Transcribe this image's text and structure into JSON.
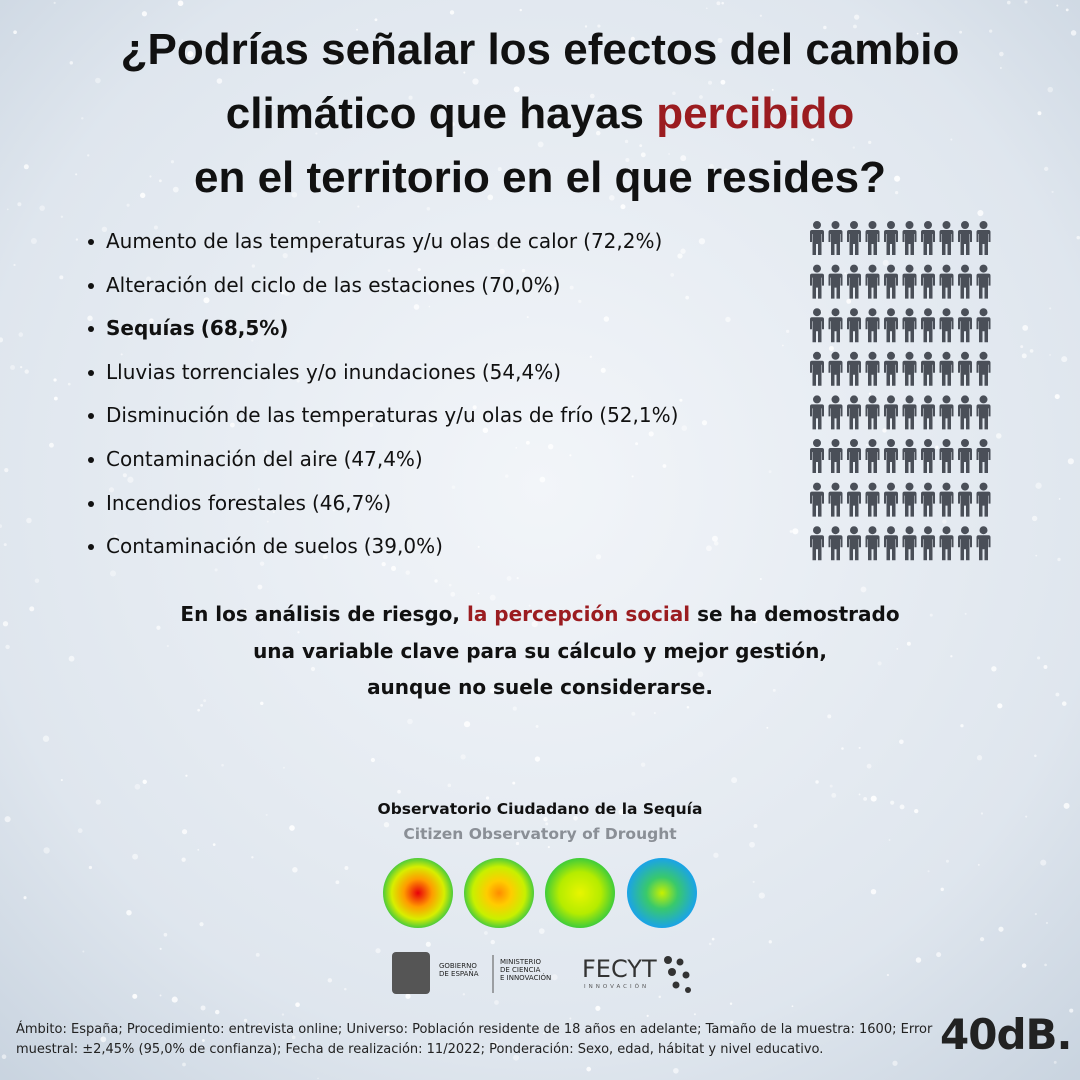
{
  "title": [
    [
      {
        "text": "¿Podrías señalar los efectos del cambio"
      }
    ],
    [
      {
        "text": "climático que hayas "
      },
      {
        "text": "percibido",
        "color": "#9b1c20"
      }
    ],
    [
      {
        "text": "en el territorio en el que resides?"
      }
    ]
  ],
  "chart_data": {
    "type": "pictogram",
    "categories": [
      "Aumento de las temperaturas y/u olas de calor",
      "Alteración del ciclo de las estaciones",
      "Sequías",
      "Lluvias torrenciales y/o inundaciones",
      "Disminución de las temperaturas y/u olas de frío",
      "Contaminación del aire",
      "Incendios forestales",
      "Contaminación de suelos"
    ],
    "values": [
      72.2,
      70.0,
      68.5,
      54.4,
      52.1,
      47.4,
      46.7,
      39.0
    ],
    "value_labels": [
      "(72,2%)",
      "(70,0%)",
      "(68,5%)",
      "(54,4%)",
      "(52,1%)",
      "(47,4%)",
      "(46,7%)",
      "(39,0%)"
    ],
    "bold": [
      false,
      false,
      true,
      false,
      false,
      false,
      false,
      false
    ],
    "color": "#9b1c20",
    "rest_color": "#4a4f58",
    "icons": 10
  },
  "conclusion": [
    [
      {
        "text": "En los análisis de riesgo, "
      },
      {
        "text": "la percepción social",
        "color": "#9b1c20"
      },
      {
        "text": " se ha demostrado"
      }
    ],
    [
      {
        "text": "una variable clave para su cálculo y mejor gestión,"
      }
    ],
    [
      {
        "text": "aunque no suele considerarse."
      }
    ]
  ],
  "observatory": {
    "name": "Observatorio Ciudadano de la Sequía",
    "name_en": "Citizen Observatory of Drought"
  },
  "logos": {
    "gobierno": [
      "GOBIERNO",
      "DE ESPAÑA"
    ],
    "ministerio": [
      "MINISTERIO",
      "DE CIENCIA",
      "E INNOVACIÓN"
    ],
    "fecyt": "FECYT",
    "fecyt_sub": "INNOVACIÓN"
  },
  "footnote": "Ámbito: España; Procedimiento: entrevista online; Universo: Población residente de 18 años en adelante; Tamaño de la muestra: 1600; Error muestral: ±2,45% (95,0% de confianza); Fecha de realización: 11/2022; Ponderación: Sexo, edad, hábitat y nivel educativo.",
  "brand": "40dB."
}
